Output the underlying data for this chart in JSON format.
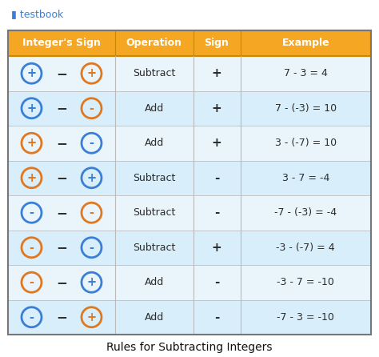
{
  "title": "Rules for Subtracting Integers",
  "header": [
    "Integer's Sign",
    "Operation",
    "Sign",
    "Example"
  ],
  "header_bg": "#F5A623",
  "header_text_color": "#FFFFFF",
  "row_bg_even": "#EAF4FB",
  "row_bg_odd": "#D8EEFA",
  "border_color": "#BBBBBB",
  "outer_border": "#888888",
  "blue_color": "#3A7FD5",
  "orange_color": "#E07820",
  "dark_text": "#2C2C2C",
  "rows": [
    {
      "sign1": "+",
      "c1": "blue",
      "sign2": "+",
      "c2": "orange",
      "operation": "Subtract",
      "result_sign": "+",
      "example": "7 - 3 = 4"
    },
    {
      "sign1": "+",
      "c1": "blue",
      "sign2": "-",
      "c2": "orange",
      "operation": "Add",
      "result_sign": "+",
      "example": "7 - (-3) = 10"
    },
    {
      "sign1": "+",
      "c1": "orange",
      "sign2": "-",
      "c2": "blue",
      "operation": "Add",
      "result_sign": "+",
      "example": "3 - (-7) = 10"
    },
    {
      "sign1": "+",
      "c1": "orange",
      "sign2": "+",
      "c2": "blue",
      "operation": "Subtract",
      "result_sign": "-",
      "example": "3 - 7 = -4"
    },
    {
      "sign1": "-",
      "c1": "blue",
      "sign2": "-",
      "c2": "orange",
      "operation": "Subtract",
      "result_sign": "-",
      "example": "-7 - (-3) = -4"
    },
    {
      "sign1": "-",
      "c1": "orange",
      "sign2": "-",
      "c2": "blue",
      "operation": "Subtract",
      "result_sign": "+",
      "example": "-3 - (-7) = 4"
    },
    {
      "sign1": "-",
      "c1": "orange",
      "sign2": "+",
      "c2": "blue",
      "operation": "Add",
      "result_sign": "-",
      "example": "-3 - 7 = -10"
    },
    {
      "sign1": "-",
      "c1": "blue",
      "sign2": "+",
      "c2": "orange",
      "operation": "Add",
      "result_sign": "-",
      "example": "-7 - 3 = -10"
    }
  ],
  "logo_text": "testbook",
  "figsize": [
    4.74,
    4.46
  ],
  "dpi": 100
}
